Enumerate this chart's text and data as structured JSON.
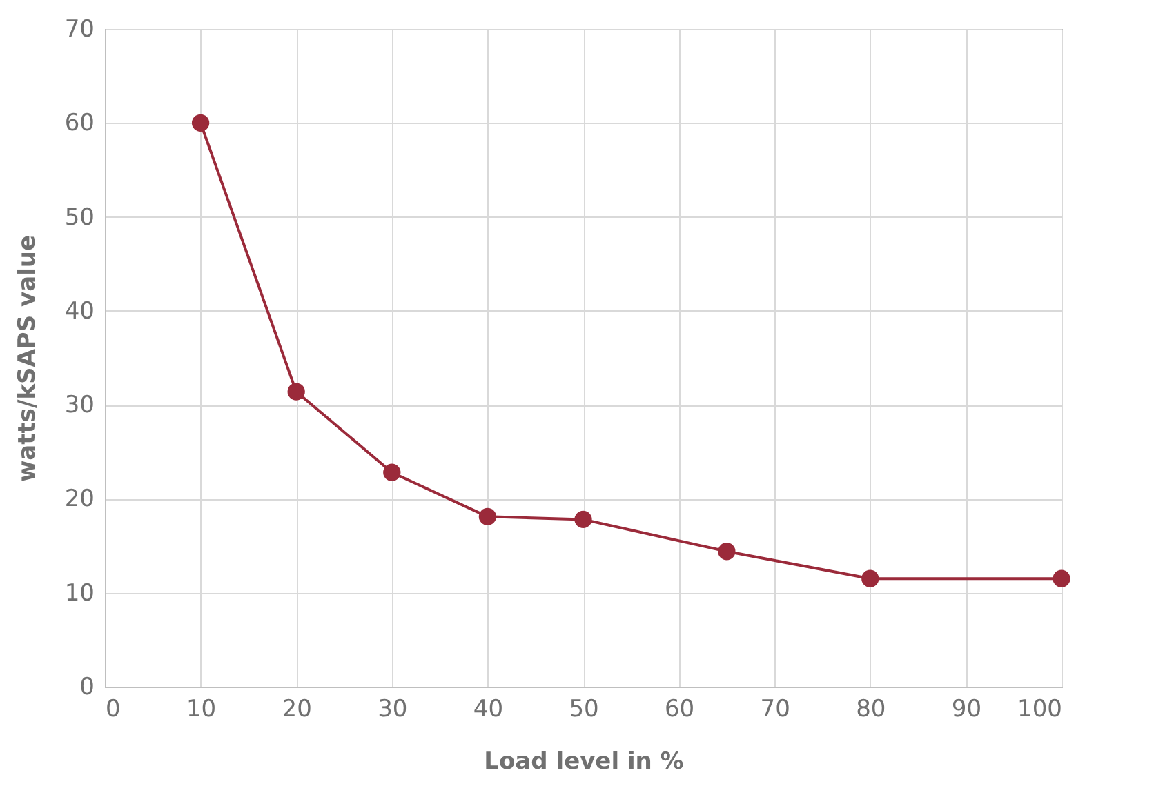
{
  "chart_data": {
    "type": "line",
    "xlabel": "Load level in %",
    "ylabel": "watts/kSAPS value",
    "x": [
      10,
      20,
      30,
      40,
      50,
      65,
      80,
      100
    ],
    "series": [
      {
        "color": "#9b2a3a",
        "values": [
          60,
          31.4,
          22.8,
          18.1,
          17.8,
          14.4,
          11.5,
          11.5
        ]
      }
    ],
    "xlim": [
      0,
      100
    ],
    "xticks": [
      0,
      10,
      20,
      30,
      40,
      50,
      60,
      70,
      80,
      90,
      100
    ],
    "ylim": [
      0,
      70
    ],
    "yticks": [
      0,
      10,
      20,
      30,
      40,
      50,
      60,
      70
    ],
    "grid": true,
    "marker": "circle",
    "line_style": "solid"
  }
}
